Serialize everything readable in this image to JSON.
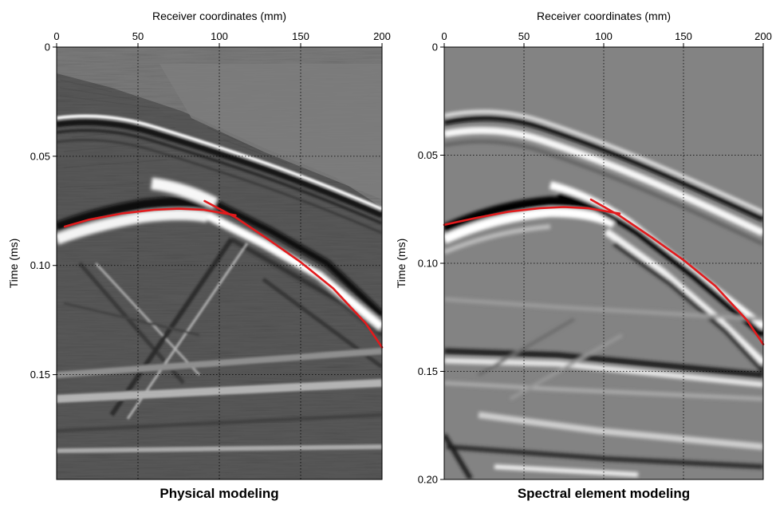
{
  "chart_data": [
    {
      "type": "seismic_section",
      "caption": "Physical modeling",
      "xlabel": "Receiver coordinates (mm)",
      "ylabel": "Time (ms)",
      "xlim": [
        0,
        200
      ],
      "ylim": [
        0,
        0.198
      ],
      "y_inverted": true,
      "x_axis_position": "top",
      "xticks": [
        "0",
        "50",
        "100",
        "150",
        "200"
      ],
      "yticks": [
        {
          "value": 0,
          "label": "0"
        },
        {
          "value": 0.05,
          "label": "0.05"
        },
        {
          "value": 0.1,
          "label": "0.10"
        },
        {
          "value": 0.15,
          "label": "0.15"
        }
      ],
      "grid": "dotted",
      "colormap": "grayscale",
      "overlay_color": "#e31a1c",
      "overlay": [
        {
          "name": "reflection",
          "x": [
            5,
            20,
            40,
            60,
            75,
            90,
            110
          ],
          "y": [
            0.0822,
            0.079,
            0.0762,
            0.0745,
            0.074,
            0.0745,
            0.077
          ]
        },
        {
          "name": "diffraction",
          "x": [
            91,
            110,
            130,
            150,
            170,
            190,
            200
          ],
          "y": [
            0.0705,
            0.078,
            0.088,
            0.0985,
            0.1105,
            0.1265,
            0.1375
          ]
        }
      ]
    },
    {
      "type": "seismic_section",
      "caption": "Spectral element modeling",
      "xlabel": "Receiver coordinates (mm)",
      "ylabel": "Time (ms)",
      "xlim": [
        0,
        200
      ],
      "ylim": [
        0,
        0.2
      ],
      "y_inverted": true,
      "x_axis_position": "top",
      "xticks": [
        "0",
        "50",
        "100",
        "150",
        "200"
      ],
      "yticks": [
        {
          "value": 0,
          "label": "0"
        },
        {
          "value": 0.05,
          "label": "0.05"
        },
        {
          "value": 0.1,
          "label": "0.10"
        },
        {
          "value": 0.15,
          "label": "0.15"
        },
        {
          "value": 0.2,
          "label": "0.20"
        }
      ],
      "grid": "dotted",
      "colormap": "grayscale",
      "overlay_color": "#e31a1c",
      "overlay": [
        {
          "name": "reflection",
          "x": [
            0,
            20,
            40,
            60,
            75,
            90,
            110
          ],
          "y": [
            0.0822,
            0.079,
            0.0762,
            0.0745,
            0.074,
            0.0745,
            0.077
          ]
        },
        {
          "name": "diffraction",
          "x": [
            92,
            110,
            130,
            150,
            170,
            190,
            200
          ],
          "y": [
            0.0705,
            0.078,
            0.088,
            0.0985,
            0.1105,
            0.1265,
            0.1375
          ]
        }
      ]
    }
  ]
}
